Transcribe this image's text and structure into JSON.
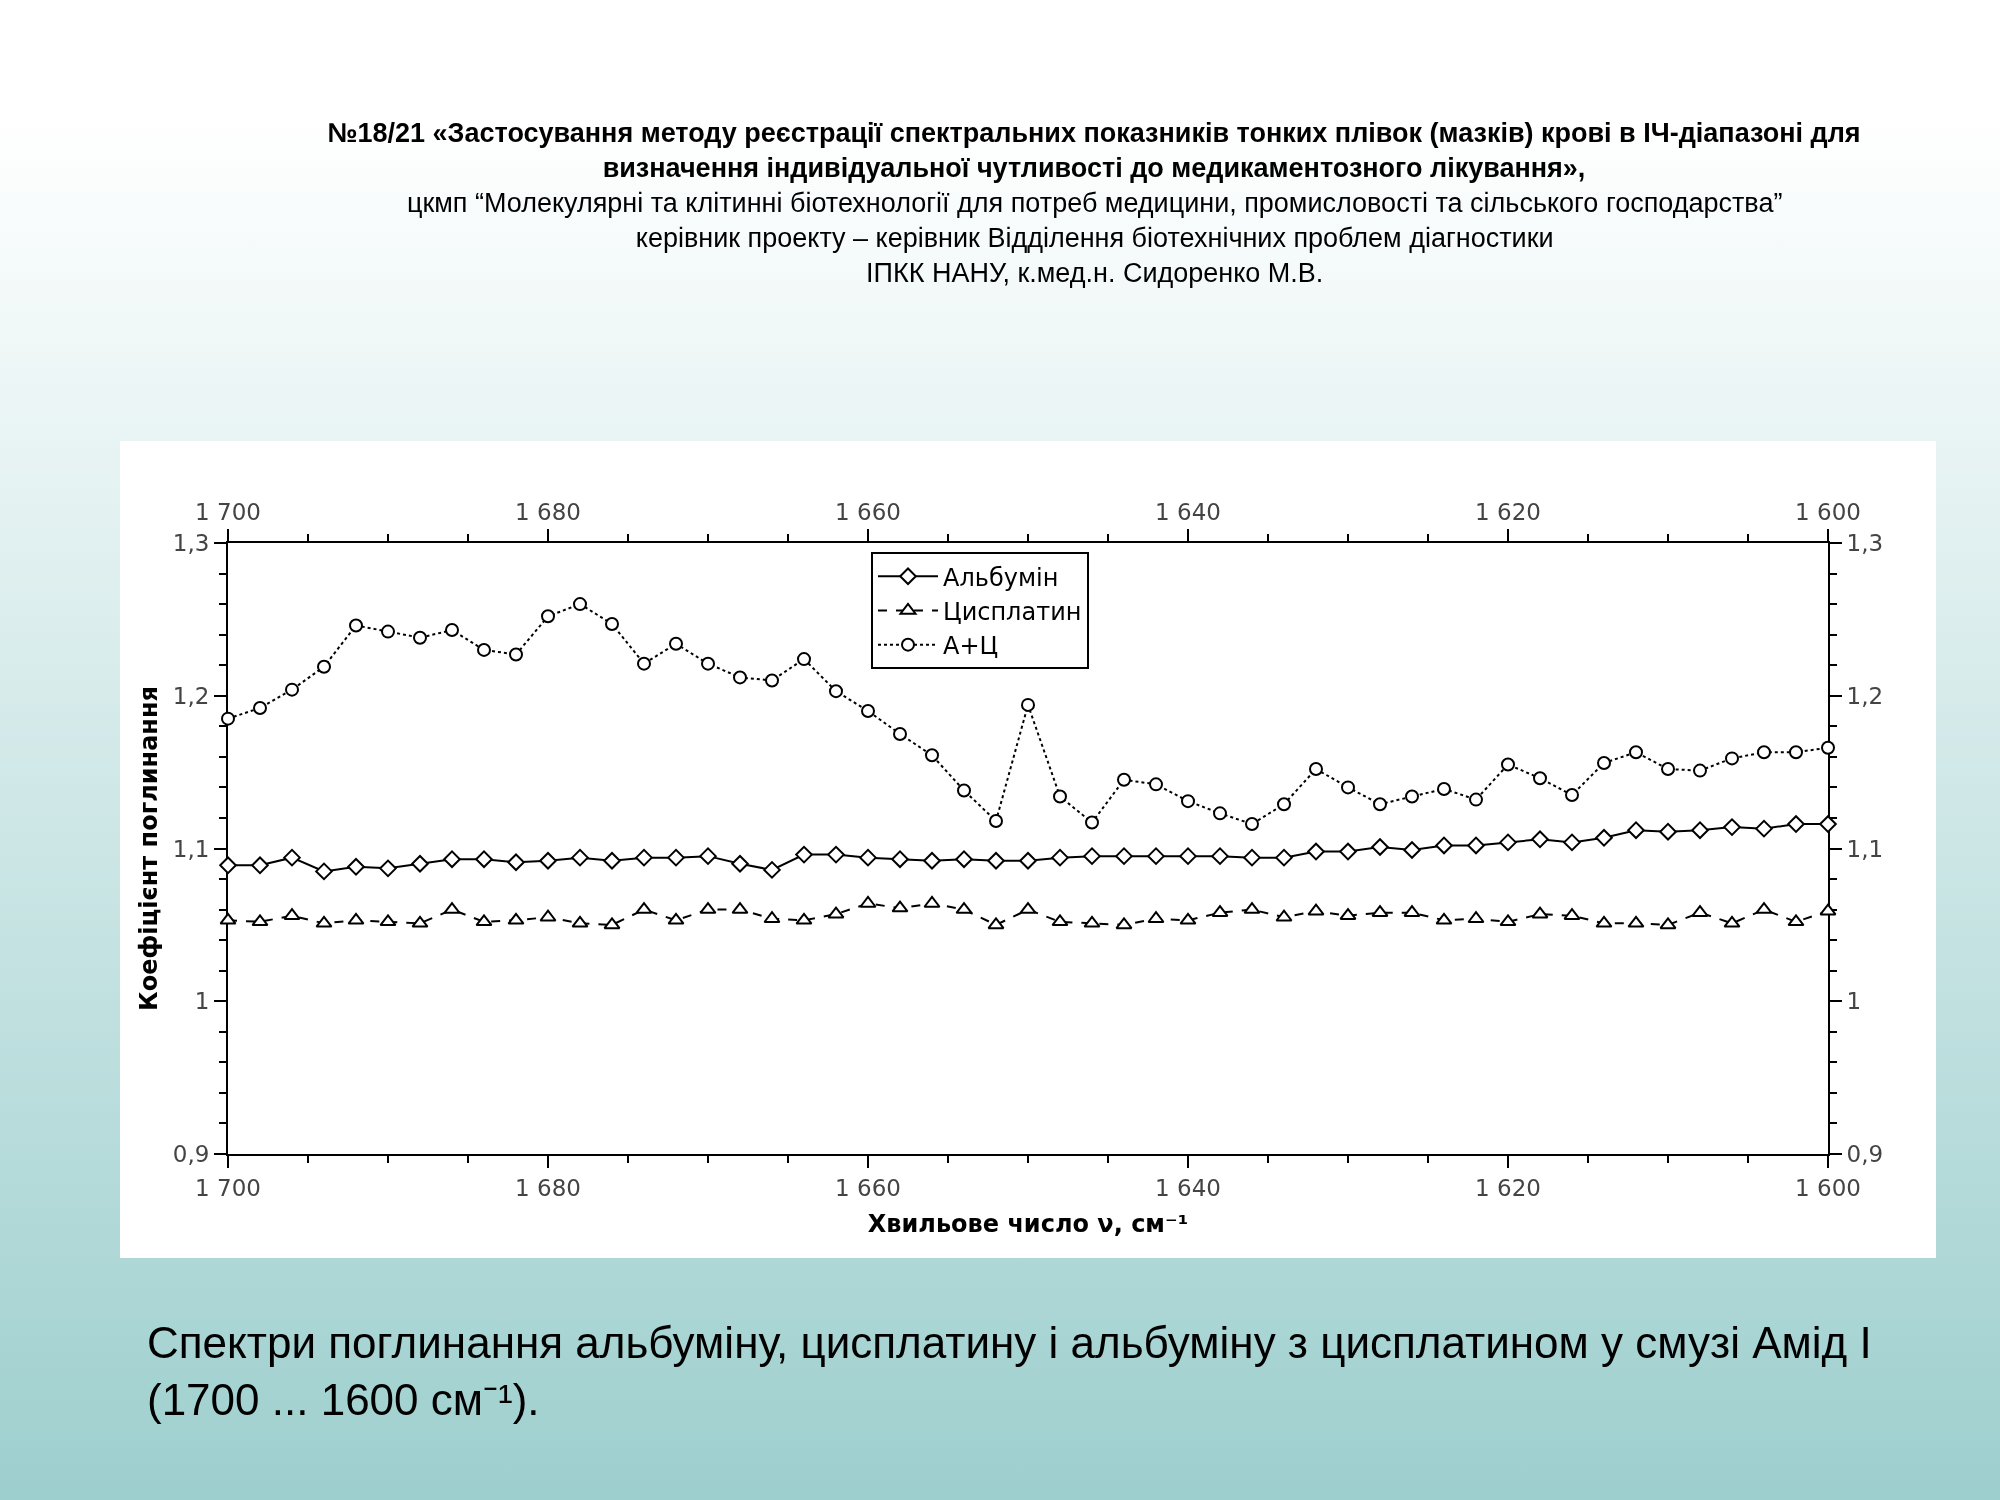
{
  "chart_data": {
    "type": "line",
    "title": "№18/21 «Застосування методу реєстрації спектральних показників тонких плівок (мазків) крові в ІЧ-діапазоні для\nвизначення індивідуальної чутливості до медикаментозного лікування»,",
    "subtitle": "цкмп “Молекулярні та клітинні біотехнології для потреб медицини, промисловості та сільського господарства”\nкерівник проекту – керівник Відділення біотехнічних проблем діагностики\nІПКК НАНУ, к.мед.н. Сидоренко М.В.",
    "xlabel": "Хвильове число ν, см⁻¹",
    "ylabel": "Коефіцієнт поглинання",
    "annotations": [
      "Спектри поглинання альбуміну, цисплатину і альбуміну з цисплатином у смузі Амід I\n(1700 ... 1600 см⁻¹)."
    ],
    "x": [
      1700,
      1698,
      1696,
      1694,
      1692,
      1690,
      1688,
      1686,
      1684,
      1682,
      1680,
      1678,
      1676,
      1674,
      1672,
      1670,
      1668,
      1666,
      1664,
      1662,
      1660,
      1658,
      1656,
      1654,
      1652,
      1650,
      1648,
      1646,
      1644,
      1642,
      1640,
      1638,
      1636,
      1634,
      1632,
      1630,
      1628,
      1626,
      1624,
      1622,
      1620,
      1618,
      1616,
      1614,
      1612,
      1610,
      1608,
      1606,
      1604,
      1602,
      1600
    ],
    "series": [
      {
        "name": "Альбумін",
        "color": "#000000",
        "marker": "diamond",
        "line_style": "solid",
        "values": [
          1.089,
          1.089,
          1.094,
          1.085,
          1.088,
          1.087,
          1.09,
          1.093,
          1.093,
          1.091,
          1.092,
          1.094,
          1.092,
          1.094,
          1.094,
          1.095,
          1.09,
          1.086,
          1.096,
          1.096,
          1.094,
          1.093,
          1.092,
          1.093,
          1.092,
          1.092,
          1.094,
          1.095,
          1.095,
          1.095,
          1.095,
          1.095,
          1.094,
          1.094,
          1.098,
          1.098,
          1.101,
          1.099,
          1.102,
          1.102,
          1.104,
          1.106,
          1.104,
          1.107,
          1.112,
          1.111,
          1.112,
          1.114,
          1.113,
          1.116,
          1.116
        ]
      },
      {
        "name": "Цисплатин",
        "color": "#000000",
        "marker": "triangle",
        "line_style": "dashed",
        "values": [
          1.053,
          1.052,
          1.056,
          1.051,
          1.053,
          1.052,
          1.051,
          1.06,
          1.052,
          1.053,
          1.055,
          1.051,
          1.05,
          1.06,
          1.053,
          1.06,
          1.06,
          1.054,
          1.053,
          1.057,
          1.064,
          1.061,
          1.064,
          1.06,
          1.05,
          1.06,
          1.052,
          1.051,
          1.05,
          1.054,
          1.053,
          1.058,
          1.06,
          1.055,
          1.059,
          1.056,
          1.058,
          1.058,
          1.053,
          1.054,
          1.052,
          1.057,
          1.056,
          1.051,
          1.051,
          1.05,
          1.058,
          1.051,
          1.06,
          1.052,
          1.059
        ]
      },
      {
        "name": "А+Ц",
        "color": "#000000",
        "marker": "circle",
        "line_style": "dotted",
        "values": [
          1.185,
          1.192,
          1.204,
          1.219,
          1.246,
          1.242,
          1.238,
          1.243,
          1.23,
          1.227,
          1.252,
          1.26,
          1.247,
          1.221,
          1.234,
          1.221,
          1.212,
          1.21,
          1.224,
          1.203,
          1.19,
          1.175,
          1.161,
          1.138,
          1.118,
          1.194,
          1.134,
          1.117,
          1.145,
          1.142,
          1.131,
          1.123,
          1.116,
          1.129,
          1.152,
          1.14,
          1.129,
          1.134,
          1.139,
          1.132,
          1.155,
          1.146,
          1.135,
          1.156,
          1.163,
          1.152,
          1.151,
          1.159,
          1.163,
          1.163,
          1.166
        ]
      }
    ],
    "xlim": [
      1700,
      1600
    ],
    "xticks": [
      {
        "value": 1700,
        "label": "1 700"
      },
      {
        "value": 1695,
        "label": null
      },
      {
        "value": 1690,
        "label": null
      },
      {
        "value": 1685,
        "label": null
      },
      {
        "value": 1680,
        "label": "1 680"
      },
      {
        "value": 1675,
        "label": null
      },
      {
        "value": 1670,
        "label": null
      },
      {
        "value": 1665,
        "label": null
      },
      {
        "value": 1660,
        "label": "1 660"
      },
      {
        "value": 1655,
        "label": null
      },
      {
        "value": 1650,
        "label": null
      },
      {
        "value": 1645,
        "label": null
      },
      {
        "value": 1640,
        "label": "1 640"
      },
      {
        "value": 1635,
        "label": null
      },
      {
        "value": 1630,
        "label": null
      },
      {
        "value": 1625,
        "label": null
      },
      {
        "value": 1620,
        "label": "1 620"
      },
      {
        "value": 1615,
        "label": null
      },
      {
        "value": 1610,
        "label": null
      },
      {
        "value": 1605,
        "label": null
      },
      {
        "value": 1600,
        "label": "1 600"
      }
    ],
    "x2lim": [
      1700,
      1600
    ],
    "x2ticks": [
      {
        "value": 1700,
        "label": "1 700"
      },
      {
        "value": 1695,
        "label": null
      },
      {
        "value": 1690,
        "label": null
      },
      {
        "value": 1685,
        "label": null
      },
      {
        "value": 1680,
        "label": "1 680"
      },
      {
        "value": 1675,
        "label": null
      },
      {
        "value": 1670,
        "label": null
      },
      {
        "value": 1665,
        "label": null
      },
      {
        "value": 1660,
        "label": "1 660"
      },
      {
        "value": 1655,
        "label": null
      },
      {
        "value": 1650,
        "label": null
      },
      {
        "value": 1645,
        "label": null
      },
      {
        "value": 1640,
        "label": "1 640"
      },
      {
        "value": 1635,
        "label": null
      },
      {
        "value": 1630,
        "label": null
      },
      {
        "value": 1625,
        "label": null
      },
      {
        "value": 1620,
        "label": "1 620"
      },
      {
        "value": 1615,
        "label": null
      },
      {
        "value": 1610,
        "label": null
      },
      {
        "value": 1605,
        "label": null
      },
      {
        "value": 1600,
        "label": "1 600"
      }
    ],
    "ylim": [
      0.9,
      1.3
    ],
    "yticks": [
      {
        "value": 0.9,
        "label": "0,9"
      },
      {
        "value": 0.92,
        "label": null
      },
      {
        "value": 0.94,
        "label": null
      },
      {
        "value": 0.96,
        "label": null
      },
      {
        "value": 0.98,
        "label": null
      },
      1,
      {
        "value": 1.02,
        "label": null
      },
      {
        "value": 1.04,
        "label": null
      },
      {
        "value": 1.06,
        "label": null
      },
      {
        "value": 1.08,
        "label": null
      },
      {
        "value": 1.1,
        "label": "1,1"
      },
      {
        "value": 1.12,
        "label": null
      },
      {
        "value": 1.14,
        "label": null
      },
      {
        "value": 1.16,
        "label": null
      },
      {
        "value": 1.18,
        "label": null
      },
      {
        "value": 1.2,
        "label": "1,2"
      },
      {
        "value": 1.22,
        "label": null
      },
      {
        "value": 1.24,
        "label": null
      },
      {
        "value": 1.26,
        "label": null
      },
      {
        "value": 1.28,
        "label": null
      },
      {
        "value": 1.3,
        "label": "1,3"
      }
    ],
    "y2lim": [
      0.9,
      1.3
    ],
    "y2ticks": [
      {
        "value": 0.9,
        "label": "0,9"
      },
      {
        "value": 0.92,
        "label": null
      },
      {
        "value": 0.94,
        "label": null
      },
      {
        "value": 0.96,
        "label": null
      },
      {
        "value": 0.98,
        "label": null
      },
      1,
      {
        "value": 1.02,
        "label": null
      },
      {
        "value": 1.04,
        "label": null
      },
      {
        "value": 1.06,
        "label": null
      },
      {
        "value": 1.08,
        "label": null
      },
      {
        "value": 1.1,
        "label": "1,1"
      },
      {
        "value": 1.12,
        "label": null
      },
      {
        "value": 1.14,
        "label": null
      },
      {
        "value": 1.16,
        "label": null
      },
      {
        "value": 1.18,
        "label": null
      },
      {
        "value": 1.2,
        "label": "1,2"
      },
      {
        "value": 1.22,
        "label": null
      },
      {
        "value": 1.24,
        "label": null
      },
      {
        "value": 1.26,
        "label": null
      },
      {
        "value": 1.28,
        "label": null
      },
      {
        "value": 1.3,
        "label": "1,3"
      }
    ],
    "legend": "top"
  }
}
